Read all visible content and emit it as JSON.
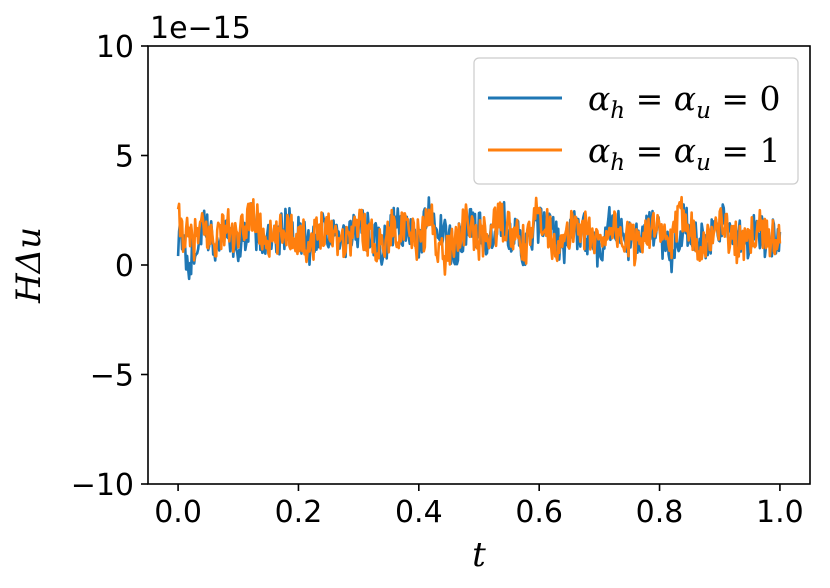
{
  "chart_data": {
    "type": "line",
    "xlabel": "t",
    "ylabel": "HΔu",
    "offset_text": "1e−15",
    "xlim": [
      -0.05,
      1.05
    ],
    "ylim": [
      -10,
      10
    ],
    "x_ticks": [
      0.0,
      0.2,
      0.4,
      0.6,
      0.8,
      1.0
    ],
    "x_tick_labels": [
      "0.0",
      "0.2",
      "0.4",
      "0.6",
      "0.8",
      "1.0"
    ],
    "y_ticks": [
      -10,
      -5,
      0,
      5,
      10
    ],
    "y_tick_labels": [
      "−10",
      "−5",
      "0",
      "5",
      "10"
    ],
    "legend": {
      "placement": "top-right"
    },
    "grid": false,
    "noise": {
      "t_start": 0.0,
      "t_end": 1.0,
      "approx_mean": 1.4,
      "approx_min": -0.9,
      "approx_max": 3.8
    },
    "series": [
      {
        "name": "α_h = α_u = 0",
        "color": "#1f77b4",
        "x": [
          0.0,
          0.02,
          0.04,
          0.06,
          0.08,
          0.1,
          0.12,
          0.14,
          0.16,
          0.18,
          0.2,
          0.22,
          0.24,
          0.26,
          0.28,
          0.3,
          0.32,
          0.34,
          0.36,
          0.38,
          0.4,
          0.42,
          0.44,
          0.46,
          0.48,
          0.5,
          0.52,
          0.54,
          0.56,
          0.58,
          0.6,
          0.62,
          0.64,
          0.66,
          0.68,
          0.7,
          0.72,
          0.74,
          0.76,
          0.78,
          0.8,
          0.82,
          0.84,
          0.86,
          0.88,
          0.9,
          0.92,
          0.94,
          0.96,
          0.98,
          1.0
        ],
        "values": [
          1.2,
          -0.9,
          2.1,
          0.5,
          1.8,
          0.3,
          2.6,
          1.0,
          0.4,
          2.2,
          1.5,
          0.2,
          2.4,
          1.1,
          0.6,
          2.0,
          1.4,
          0.0,
          2.5,
          1.2,
          0.7,
          3.8,
          1.0,
          0.3,
          2.1,
          1.6,
          0.5,
          2.6,
          1.2,
          0.1,
          2.3,
          1.5,
          0.4,
          2.0,
          1.3,
          0.2,
          2.7,
          1.1,
          0.6,
          1.9,
          1.4,
          -0.3,
          2.5,
          1.2,
          0.2,
          2.4,
          1.5,
          0.6,
          2.1,
          0.8,
          1.6
        ]
      },
      {
        "name": "α_h = α_u = 1",
        "color": "#ff7f0e",
        "x": [
          0.0,
          0.02,
          0.04,
          0.06,
          0.08,
          0.1,
          0.12,
          0.14,
          0.16,
          0.18,
          0.2,
          0.22,
          0.24,
          0.26,
          0.28,
          0.3,
          0.32,
          0.34,
          0.36,
          0.38,
          0.4,
          0.42,
          0.44,
          0.46,
          0.48,
          0.5,
          0.52,
          0.54,
          0.56,
          0.58,
          0.6,
          0.62,
          0.64,
          0.66,
          0.68,
          0.7,
          0.72,
          0.74,
          0.76,
          0.78,
          0.8,
          0.82,
          0.84,
          0.86,
          0.88,
          0.9,
          0.92,
          0.94,
          0.96,
          0.98,
          1.0
        ],
        "values": [
          2.4,
          0.6,
          1.7,
          0.9,
          2.2,
          0.5,
          3.5,
          1.3,
          0.7,
          2.0,
          1.2,
          0.6,
          2.2,
          1.6,
          0.8,
          2.4,
          1.0,
          0.5,
          2.2,
          1.4,
          0.9,
          2.7,
          -0.7,
          1.2,
          2.3,
          0.8,
          1.8,
          2.5,
          1.0,
          0.4,
          3.7,
          1.1,
          0.2,
          2.6,
          1.5,
          0.8,
          2.3,
          1.0,
          0.5,
          2.1,
          1.3,
          0.6,
          3.6,
          1.0,
          0.7,
          2.5,
          1.2,
          0.1,
          2.0,
          1.4,
          0.9
        ]
      }
    ]
  }
}
